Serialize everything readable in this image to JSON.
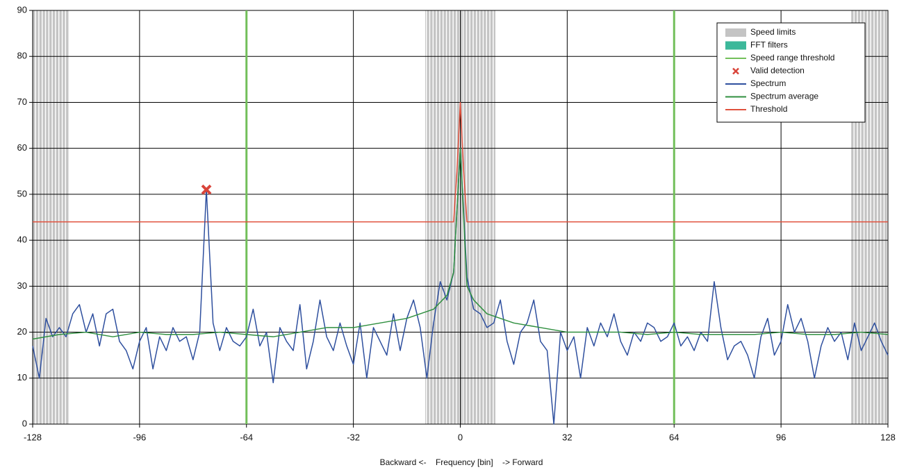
{
  "chart_data": {
    "type": "line",
    "x_label": "Backward <-    Frequency [bin]    -> Forward",
    "xlim": [
      -128,
      128
    ],
    "ylim": [
      0,
      90
    ],
    "xticks": [
      -128,
      -96,
      -64,
      -32,
      0,
      32,
      64,
      96,
      128
    ],
    "yticks": [
      0,
      10,
      20,
      30,
      40,
      50,
      60,
      70,
      80,
      90
    ],
    "grid": true,
    "legend": "upper right",
    "speed_limits": {
      "name": "Speed limits",
      "color": "#c4c4c4",
      "ranges": [
        [
          -128,
          -117
        ],
        [
          -10.5,
          10.5
        ],
        [
          117,
          128
        ]
      ]
    },
    "fft_filters": {
      "name": "FFT filters",
      "color": "#3cb89a"
    },
    "speed_range_threshold": {
      "name": "Speed range threshold",
      "color": "#72bf5a",
      "x": [
        -64,
        64
      ]
    },
    "valid_detection": {
      "name": "Valid detection",
      "color": "#d9443a",
      "x": [
        -76
      ],
      "y": [
        51
      ]
    },
    "series": [
      {
        "name": "Spectrum",
        "color": "#2e4f9e",
        "x": [
          -128,
          -126,
          -124,
          -122,
          -120,
          -118,
          -116,
          -114,
          -112,
          -110,
          -108,
          -106,
          -104,
          -102,
          -100,
          -98,
          -96,
          -94,
          -92,
          -90,
          -88,
          -86,
          -84,
          -82,
          -80,
          -78,
          -76,
          -74,
          -72,
          -70,
          -68,
          -66,
          -64,
          -62,
          -60,
          -58,
          -56,
          -54,
          -52,
          -50,
          -48,
          -46,
          -44,
          -42,
          -40,
          -38,
          -36,
          -34,
          -32,
          -30,
          -28,
          -26,
          -24,
          -22,
          -20,
          -18,
          -16,
          -14,
          -12,
          -10,
          -8,
          -6,
          -4,
          -2,
          0,
          2,
          4,
          6,
          8,
          10,
          12,
          14,
          16,
          18,
          20,
          22,
          24,
          26,
          28,
          30,
          32,
          34,
          36,
          38,
          40,
          42,
          44,
          46,
          48,
          50,
          52,
          54,
          56,
          58,
          60,
          62,
          64,
          66,
          68,
          70,
          72,
          74,
          76,
          78,
          80,
          82,
          84,
          86,
          88,
          90,
          92,
          94,
          96,
          98,
          100,
          102,
          104,
          106,
          108,
          110,
          112,
          114,
          116,
          118,
          120,
          122,
          124,
          126,
          128
        ],
        "values": [
          17,
          10,
          23,
          19,
          21,
          19,
          24,
          26,
          20,
          24,
          17,
          24,
          25,
          18,
          16,
          12,
          18,
          21,
          12,
          19,
          16,
          21,
          18,
          19,
          14,
          20,
          51,
          22,
          16,
          21,
          18,
          17,
          19,
          25,
          17,
          20,
          9,
          21,
          18,
          16,
          26,
          12,
          18,
          27,
          19,
          16,
          22,
          17,
          13,
          22,
          10,
          21,
          18,
          15,
          24,
          16,
          23,
          27,
          21,
          10,
          22,
          31,
          27,
          33,
          60,
          32,
          25,
          24,
          21,
          22,
          27,
          18,
          13,
          20,
          22,
          27,
          18,
          16,
          0,
          20,
          16,
          19,
          10,
          21,
          17,
          22,
          19,
          24,
          18,
          15,
          20,
          18,
          22,
          21,
          18,
          19,
          22,
          17,
          19,
          16,
          20,
          18,
          31,
          21,
          14,
          17,
          18,
          15,
          10,
          19,
          23,
          15,
          18,
          26,
          20,
          23,
          18,
          10,
          17,
          21,
          18,
          20,
          14,
          22,
          16,
          19,
          22,
          18,
          15
        ]
      },
      {
        "name": "Spectrum average",
        "color": "#2f8f3f",
        "x": [
          -128,
          -120,
          -112,
          -104,
          -96,
          -88,
          -80,
          -72,
          -64,
          -56,
          -48,
          -40,
          -32,
          -24,
          -16,
          -8,
          -4,
          -2,
          0,
          2,
          4,
          8,
          16,
          24,
          32,
          40,
          48,
          56,
          64,
          72,
          80,
          88,
          96,
          104,
          112,
          120,
          128
        ],
        "values": [
          18.5,
          19.5,
          20,
          19,
          20,
          19.5,
          19.5,
          20,
          19.5,
          19,
          20,
          21,
          21,
          22,
          23,
          25,
          28,
          33,
          60,
          30,
          27,
          24,
          22,
          21,
          20,
          20,
          20,
          19.5,
          20,
          19.5,
          19.5,
          19.5,
          20,
          19.5,
          19.5,
          20,
          19.5
        ]
      },
      {
        "name": "Threshold",
        "color": "#e0503c",
        "x": [
          -128,
          -2,
          -1,
          0,
          1,
          2,
          128
        ],
        "values": [
          44,
          44,
          55,
          70,
          55,
          44,
          44
        ]
      }
    ]
  }
}
